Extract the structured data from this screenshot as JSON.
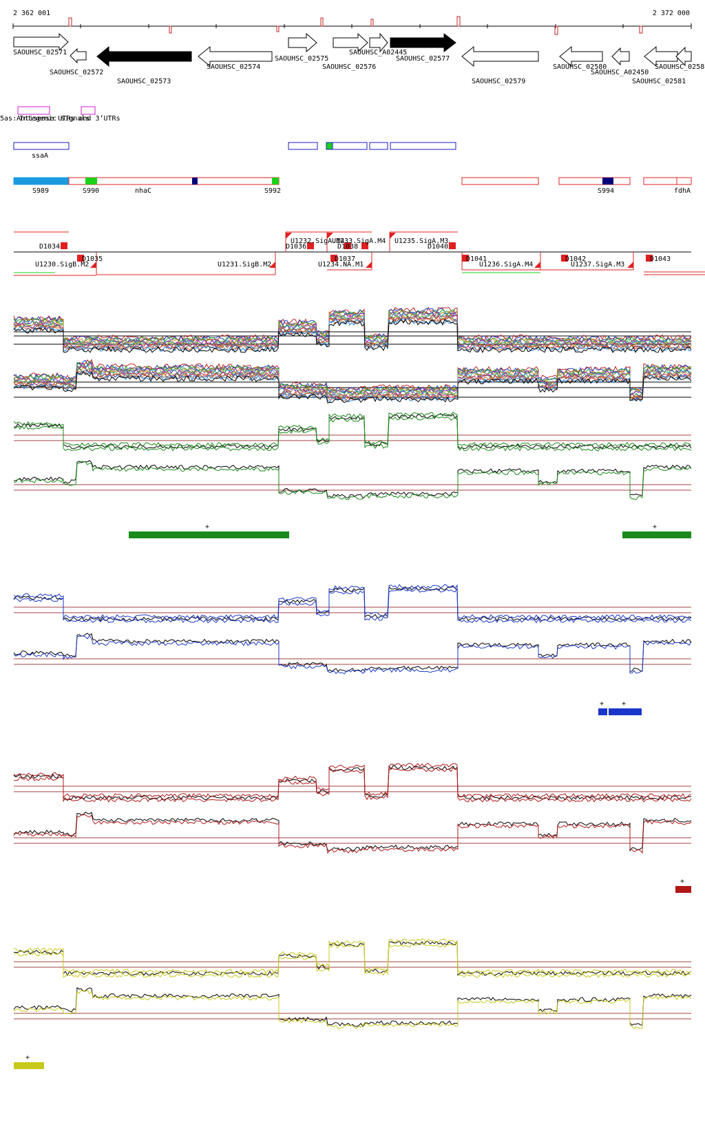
{
  "ruler": {
    "start_label": "2 362 001",
    "end_label": "2 372 000"
  },
  "genes": [
    {
      "name": "SAOUHSC_02571",
      "strand": "+",
      "filled": false
    },
    {
      "name": "SAOUHSC_02572",
      "strand": "-",
      "filled": false
    },
    {
      "name": "SAOUHSC_02573",
      "strand": "-",
      "filled": true
    },
    {
      "name": "SAOUHSC_02574",
      "strand": "-",
      "filled": false
    },
    {
      "name": "SAOUHSC_02575",
      "strand": "+",
      "filled": false
    },
    {
      "name": "SAOUHSC_02576",
      "strand": "+",
      "filled": false
    },
    {
      "name": "SAOUHSC_A02445",
      "strand": "+",
      "filled": false
    },
    {
      "name": "SAOUHSC_02577",
      "strand": "+",
      "filled": true
    },
    {
      "name": "SAOUHSC_02579",
      "strand": "-",
      "filled": false
    },
    {
      "name": "SAOUHSC_02580",
      "strand": "-",
      "filled": false
    },
    {
      "name": "SAOUHSC_A02450",
      "strand": "-",
      "filled": false
    },
    {
      "name": "SAOUHSC_02581",
      "strand": "-",
      "filled": false
    },
    {
      "name": "SAOUHSC_0258",
      "strand": "-",
      "filled": false
    }
  ],
  "utr_track": {
    "label": "5as:Antisense UTRs and 3’UTRs",
    "overlap_label": "Integenic signals"
  },
  "ssaA_track": {
    "label": "ssaA"
  },
  "srna_track": {
    "labels": [
      "S989",
      "S990",
      "nhaC",
      "S992",
      "S994",
      "fdhA"
    ]
  },
  "operon_track": {
    "labels": [
      "D1034",
      "D1035",
      "U1230.SigB.M2",
      "U1231.SigB.M2",
      "U1232.SigA.M4",
      "U1233.SigA.M4",
      "D1036",
      "D1037",
      "D1038",
      "U1234.NA.M1",
      "U1235.SigA.M3",
      "D1040",
      "D1041",
      "U1236.SigA.M4",
      "D1042",
      "U1237.SigA.M3",
      "D1043"
    ]
  },
  "signal_panels": [
    {
      "id": "all-conditions",
      "color": "#multi",
      "plus_marks": []
    },
    {
      "id": "green",
      "color": "#1a8a1a",
      "plus_marks": [
        "+",
        "+"
      ]
    },
    {
      "id": "blue",
      "color": "#1a36c8",
      "plus_marks": [
        "+",
        "+"
      ]
    },
    {
      "id": "red",
      "color": "#b01818",
      "plus_marks": [
        "+"
      ]
    },
    {
      "id": "yellow",
      "color": "#c8c81a",
      "plus_marks": [
        "+"
      ]
    }
  ],
  "colors": {
    "gene_outline": "#000000",
    "srna_red": "#e02020",
    "blue_box": "#1a1ac8",
    "light_blue": "#1a9be0",
    "green_mark": "#1ad21a",
    "navy_mark": "#00007a",
    "magenta": "#d21ad2",
    "reference_line": "#a04040"
  }
}
